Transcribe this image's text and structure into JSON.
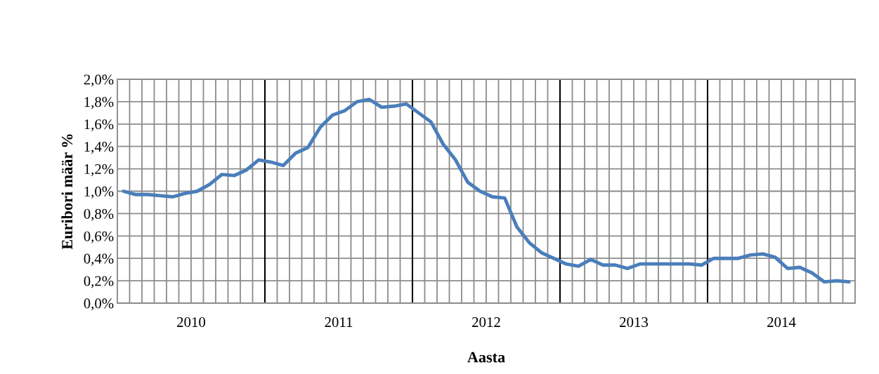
{
  "chart_data": {
    "type": "line",
    "xlabel": "Aasta",
    "ylabel": "Euribori määr %",
    "x": [
      2009.5417,
      2009.625,
      2009.7083,
      2009.7917,
      2009.875,
      2009.9583,
      2010.0417,
      2010.125,
      2010.2083,
      2010.2917,
      2010.375,
      2010.4583,
      2010.5417,
      2010.625,
      2010.7083,
      2010.7917,
      2010.875,
      2010.9583,
      2011.0417,
      2011.125,
      2011.2083,
      2011.2917,
      2011.375,
      2011.4583,
      2011.5417,
      2011.625,
      2011.7083,
      2011.7917,
      2011.875,
      2011.9583,
      2012.0417,
      2012.125,
      2012.2083,
      2012.2917,
      2012.375,
      2012.4583,
      2012.5417,
      2012.625,
      2012.7083,
      2012.7917,
      2012.875,
      2012.9583,
      2013.0417,
      2013.125,
      2013.2083,
      2013.2917,
      2013.375,
      2013.4583,
      2013.5417,
      2013.625,
      2013.7083,
      2013.7917,
      2013.875,
      2013.9583,
      2014.0417,
      2014.125,
      2014.2083,
      2014.2917,
      2014.375,
      2014.4583
    ],
    "series": [
      {
        "color": "#4a7ebb",
        "values": [
          1.0,
          0.97,
          0.97,
          0.96,
          0.95,
          0.98,
          1.0,
          1.06,
          1.15,
          1.14,
          1.19,
          1.28,
          1.26,
          1.23,
          1.34,
          1.39,
          1.57,
          1.68,
          1.72,
          1.8,
          1.82,
          1.75,
          1.76,
          1.78,
          1.7,
          1.62,
          1.42,
          1.28,
          1.08,
          1.0,
          0.95,
          0.94,
          0.68,
          0.54,
          0.45,
          0.4,
          0.35,
          0.33,
          0.39,
          0.34,
          0.34,
          0.31,
          0.35,
          0.35,
          0.35,
          0.35,
          0.35,
          0.34,
          0.4,
          0.4,
          0.4,
          0.43,
          0.44,
          0.41,
          0.31,
          0.32,
          0.27,
          0.19,
          0.2,
          0.19
        ]
      }
    ],
    "xlim": [
      2009.5,
      2014.5
    ],
    "xticks": [
      {
        "value": 2009.5,
        "label": null
      },
      {
        "value": 2009.5833,
        "label": null
      },
      {
        "value": 2009.6667,
        "label": null
      },
      {
        "value": 2009.75,
        "label": null
      },
      {
        "value": 2009.8333,
        "label": null
      },
      {
        "value": 2009.9167,
        "label": null
      },
      2010,
      {
        "value": 2010.0833,
        "label": null
      },
      {
        "value": 2010.1667,
        "label": null
      },
      {
        "value": 2010.25,
        "label": null
      },
      {
        "value": 2010.3333,
        "label": null
      },
      {
        "value": 2010.4167,
        "label": null
      },
      {
        "value": 2010.5833,
        "label": null
      },
      {
        "value": 2010.6667,
        "label": null
      },
      {
        "value": 2010.75,
        "label": null
      },
      {
        "value": 2010.8333,
        "label": null
      },
      {
        "value": 2010.9167,
        "label": null
      },
      2011,
      {
        "value": 2011.0833,
        "label": null
      },
      {
        "value": 2011.1667,
        "label": null
      },
      {
        "value": 2011.25,
        "label": null
      },
      {
        "value": 2011.3333,
        "label": null
      },
      {
        "value": 2011.4167,
        "label": null
      },
      {
        "value": 2011.5833,
        "label": null
      },
      {
        "value": 2011.6667,
        "label": null
      },
      {
        "value": 2011.75,
        "label": null
      },
      {
        "value": 2011.8333,
        "label": null
      },
      {
        "value": 2011.9167,
        "label": null
      },
      2012,
      {
        "value": 2012.0833,
        "label": null
      },
      {
        "value": 2012.1667,
        "label": null
      },
      {
        "value": 2012.25,
        "label": null
      },
      {
        "value": 2012.3333,
        "label": null
      },
      {
        "value": 2012.4167,
        "label": null
      },
      {
        "value": 2012.5833,
        "label": null
      },
      {
        "value": 2012.6667,
        "label": null
      },
      {
        "value": 2012.75,
        "label": null
      },
      {
        "value": 2012.8333,
        "label": null
      },
      {
        "value": 2012.9167,
        "label": null
      },
      2013,
      {
        "value": 2013.0833,
        "label": null
      },
      {
        "value": 2013.1667,
        "label": null
      },
      {
        "value": 2013.25,
        "label": null
      },
      {
        "value": 2013.3333,
        "label": null
      },
      {
        "value": 2013.4167,
        "label": null
      },
      {
        "value": 2013.5833,
        "label": null
      },
      {
        "value": 2013.6667,
        "label": null
      },
      {
        "value": 2013.75,
        "label": null
      },
      {
        "value": 2013.8333,
        "label": null
      },
      {
        "value": 2013.9167,
        "label": null
      },
      2014,
      {
        "value": 2014.0833,
        "label": null
      },
      {
        "value": 2014.1667,
        "label": null
      },
      {
        "value": 2014.25,
        "label": null
      },
      {
        "value": 2014.3333,
        "label": null
      },
      {
        "value": 2014.4167,
        "label": null
      },
      {
        "value": 2014.5,
        "label": null
      }
    ],
    "ylim": [
      0,
      2.0
    ],
    "yticks": [
      {
        "value": 0,
        "label": "0,0%"
      },
      {
        "value": 0.2,
        "label": "0,2%"
      },
      {
        "value": 0.4,
        "label": "0,4%"
      },
      {
        "value": 0.6,
        "label": "0,6%"
      },
      {
        "value": 0.8,
        "label": "0,8%"
      },
      {
        "value": 1.0,
        "label": "1,0%"
      },
      {
        "value": 1.2,
        "label": "1,2%"
      },
      {
        "value": 1.4,
        "label": "1,4%"
      },
      {
        "value": 1.6,
        "label": "1,6%"
      },
      {
        "value": 1.8,
        "label": "1,8%"
      },
      {
        "value": 2.0,
        "label": "2,0%"
      }
    ],
    "grid": true,
    "marker": "none",
    "line_style": "solid",
    "ref_lines": [
      {
        "axis": "x",
        "value": 2010.5,
        "color": "#000000"
      },
      {
        "axis": "x",
        "value": 2011.5,
        "color": "#000000"
      },
      {
        "axis": "x",
        "value": 2012.5,
        "color": "#000000"
      },
      {
        "axis": "x",
        "value": 2013.5,
        "color": "#000000"
      }
    ]
  }
}
